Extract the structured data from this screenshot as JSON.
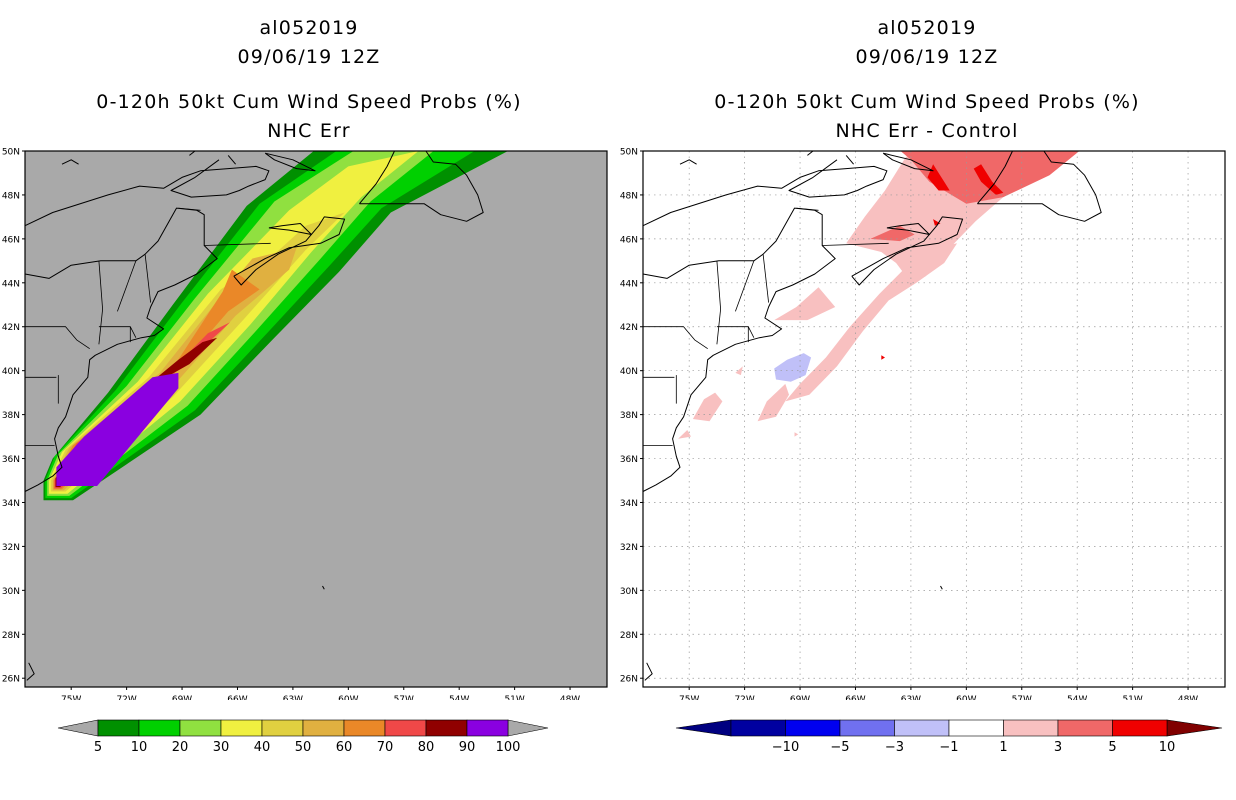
{
  "left": {
    "storm_id": "al052019",
    "datetime": "09/06/19 12Z",
    "product": "0-120h 50kt Cum Wind Speed Probs (%)",
    "run": "NHC Err",
    "background_color": "#a9a9a9",
    "colorbar": {
      "labels": [
        "5",
        "10",
        "20",
        "30",
        "40",
        "50",
        "60",
        "70",
        "80",
        "90",
        "100"
      ],
      "colors": [
        "#009000",
        "#00d000",
        "#90e040",
        "#f0f040",
        "#e0d040",
        "#e0b040",
        "#ea8828",
        "#f04848",
        "#900000",
        "#8a00e0"
      ]
    }
  },
  "right": {
    "storm_id": "al052019",
    "datetime": "09/06/19 12Z",
    "product": "0-120h 50kt Cum Wind Speed Probs (%)",
    "run": "NHC Err - Control",
    "background_color": "#ffffff",
    "colorbar": {
      "labels": [
        "-10",
        "-5",
        "-3",
        "-1",
        "1",
        "3",
        "5",
        "10"
      ],
      "colors": [
        "#0000a0",
        "#0000f0",
        "#7070f0",
        "#c0c0f8",
        "#ffffff",
        "#f8c0c0",
        "#f06868",
        "#f00000"
      ],
      "end_colors": [
        "#000080",
        "#800000"
      ]
    }
  },
  "axes": {
    "lat_labels": [
      "50N",
      "48N",
      "46N",
      "44N",
      "42N",
      "40N",
      "38N",
      "36N",
      "34N",
      "32N",
      "30N",
      "28N",
      "26N"
    ],
    "lon_labels": [
      "75W",
      "72W",
      "69W",
      "66W",
      "63W",
      "60W",
      "57W",
      "54W",
      "51W",
      "48W"
    ]
  }
}
